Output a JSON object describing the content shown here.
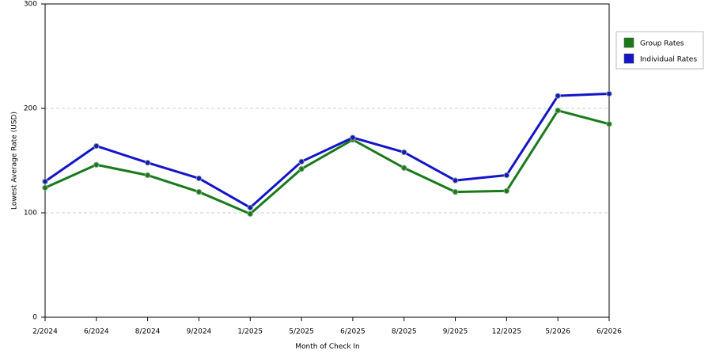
{
  "chart_data": {
    "type": "line",
    "xlabel": "Month of Check In",
    "ylabel": "Lowest Average Rate (USD)",
    "categories": [
      "2/2024",
      "6/2024",
      "8/2024",
      "9/2024",
      "1/2025",
      "5/2025",
      "6/2025",
      "8/2025",
      "9/2025",
      "12/2025",
      "5/2026",
      "6/2026"
    ],
    "series": [
      {
        "name": "Group Rates",
        "color": "#1a7a1a",
        "values": [
          124,
          146,
          136,
          120,
          99,
          142,
          170,
          143,
          120,
          121,
          198,
          185
        ]
      },
      {
        "name": "Individual Rates",
        "color": "#1414c8",
        "values": [
          130,
          164,
          148,
          133,
          105,
          149,
          172,
          158,
          131,
          136,
          212,
          214
        ]
      }
    ],
    "ylim": [
      0,
      300
    ],
    "yticks": [
      0,
      100,
      200,
      300
    ],
    "grid": true,
    "legend": "right"
  }
}
